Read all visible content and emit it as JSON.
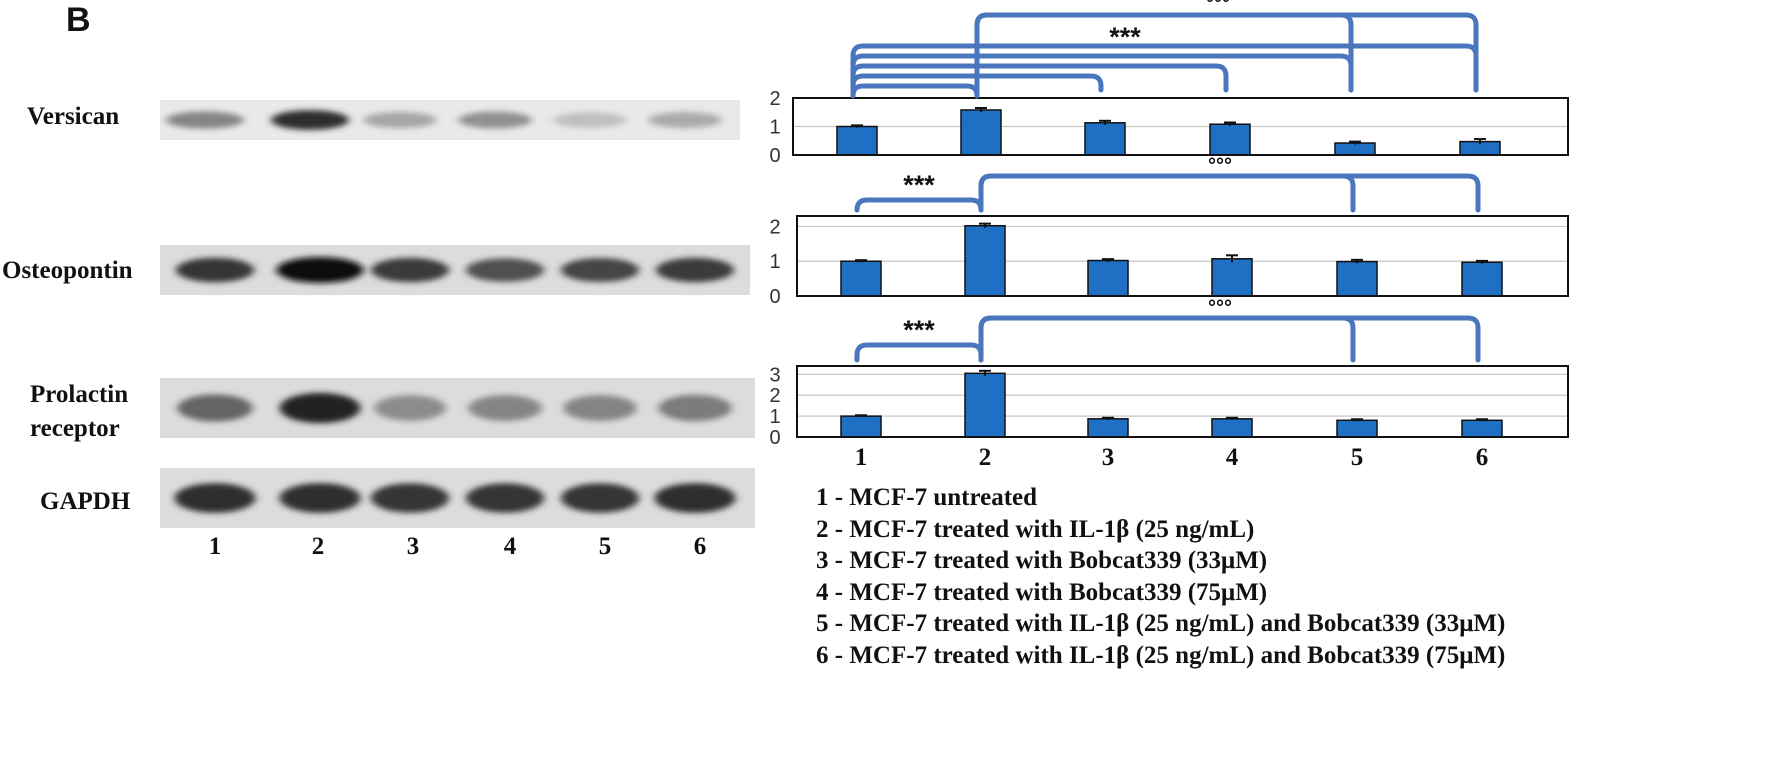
{
  "panel_label": "B",
  "blot": {
    "rows": [
      {
        "label": "Versican",
        "intensities": [
          0.45,
          0.85,
          0.3,
          0.4,
          0.18,
          0.28
        ],
        "widths": [
          0.85,
          0.85,
          0.8,
          0.8,
          0.8,
          0.8
        ],
        "light": true
      },
      {
        "label": "Osteopontin",
        "intensities": [
          0.82,
          1.0,
          0.8,
          0.7,
          0.75,
          0.8
        ],
        "widths": [
          0.85,
          0.95,
          0.85,
          0.85,
          0.85,
          0.85
        ],
        "light": false
      },
      {
        "label": "Prolactin receptor",
        "label_lines": [
          "Prolactin",
          "receptor"
        ],
        "intensities": [
          0.6,
          0.92,
          0.42,
          0.45,
          0.45,
          0.5
        ],
        "widths": [
          0.82,
          0.88,
          0.78,
          0.8,
          0.8,
          0.8
        ],
        "light": false
      },
      {
        "label": "GAPDH",
        "intensities": [
          0.85,
          0.85,
          0.82,
          0.82,
          0.82,
          0.85
        ],
        "widths": [
          0.88,
          0.88,
          0.85,
          0.85,
          0.85,
          0.88
        ],
        "light": false
      }
    ],
    "lane_labels": [
      "1",
      "2",
      "3",
      "4",
      "5",
      "6"
    ]
  },
  "colors": {
    "bar": "#1f6fc4",
    "bracket": "#4a76bd",
    "grid": "#c8c8c8",
    "text": "#111111"
  },
  "chart_data": [
    {
      "type": "bar",
      "categories": [
        "1",
        "2",
        "3",
        "4",
        "5",
        "6"
      ],
      "values": [
        1.0,
        1.58,
        1.13,
        1.08,
        0.42,
        0.47
      ],
      "errors": [
        0.04,
        0.07,
        0.07,
        0.06,
        0.05,
        0.09
      ],
      "ylim": [
        0,
        2
      ],
      "yticks": [
        0,
        1,
        2
      ],
      "grid": true,
      "significance": [
        {
          "label": "***",
          "groups": [
            [
              1,
              2
            ],
            [
              1,
              3
            ],
            [
              1,
              4
            ],
            [
              1,
              5
            ],
            [
              1,
              6
            ]
          ]
        },
        {
          "label": "°°°",
          "groups": [
            [
              2,
              5
            ],
            [
              2,
              6
            ]
          ]
        }
      ]
    },
    {
      "type": "bar",
      "categories": [
        "1",
        "2",
        "3",
        "4",
        "5",
        "6"
      ],
      "values": [
        1.0,
        2.02,
        1.02,
        1.07,
        0.99,
        0.97
      ],
      "errors": [
        0.03,
        0.06,
        0.04,
        0.1,
        0.05,
        0.04
      ],
      "ylim": [
        0,
        2.3
      ],
      "yticks": [
        0,
        1,
        2
      ],
      "grid": true,
      "significance": [
        {
          "label": "***",
          "groups": [
            [
              1,
              2
            ]
          ]
        },
        {
          "label": "°°°",
          "groups": [
            [
              2,
              5
            ],
            [
              2,
              6
            ]
          ]
        }
      ]
    },
    {
      "type": "bar",
      "categories": [
        "1",
        "2",
        "3",
        "4",
        "5",
        "6"
      ],
      "values": [
        1.0,
        3.05,
        0.87,
        0.87,
        0.8,
        0.8
      ],
      "errors": [
        0.04,
        0.12,
        0.05,
        0.05,
        0.05,
        0.05
      ],
      "ylim": [
        0,
        3.4
      ],
      "yticks": [
        0,
        1,
        2,
        3
      ],
      "grid": true,
      "xtick_labels": [
        "1",
        "2",
        "3",
        "4",
        "5",
        "6"
      ],
      "significance": [
        {
          "label": "***",
          "groups": [
            [
              1,
              2
            ]
          ]
        },
        {
          "label": "°°°",
          "groups": [
            [
              2,
              5
            ],
            [
              2,
              6
            ]
          ]
        }
      ]
    }
  ],
  "legend": {
    "items": [
      "1 - MCF-7 untreated",
      "2 - MCF-7 treated with IL-1β (25 ng/mL)",
      "3 - MCF-7 treated with Bobcat339 (33μM)",
      "4 - MCF-7 treated with Bobcat339 (75μM)",
      "5 - MCF-7 treated with IL-1β (25 ng/mL) and Bobcat339 (33μM)",
      "6 - MCF-7 treated with IL-1β (25 ng/mL) and Bobcat339 (75μM)"
    ]
  }
}
